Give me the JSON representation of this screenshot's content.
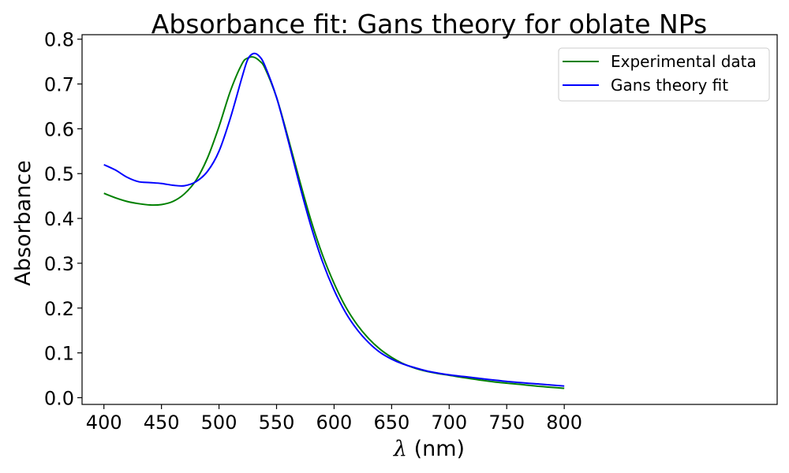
{
  "chart_data": {
    "type": "line",
    "title": "Absorbance fit: Gans theory for oblate NPs",
    "xlabel_symbol": "λ",
    "xlabel_rest": " (nm)",
    "ylabel": "Absorbance",
    "xlim": [
      381,
      985
    ],
    "ylim": [
      -0.015,
      0.81
    ],
    "xticks": [
      400,
      450,
      500,
      550,
      600,
      650,
      700,
      750,
      800
    ],
    "yticks": [
      0.0,
      0.1,
      0.2,
      0.3,
      0.4,
      0.5,
      0.6,
      0.7,
      0.8
    ],
    "ytick_labels": [
      "0.0",
      "0.1",
      "0.2",
      "0.3",
      "0.4",
      "0.5",
      "0.6",
      "0.7",
      "0.8"
    ],
    "grid": false,
    "legend_position": "top-right",
    "series": [
      {
        "name": "Experimental data",
        "color": "#008000",
        "x": [
          400,
          410,
          420,
          430,
          440,
          450,
          460,
          470,
          480,
          490,
          500,
          510,
          520,
          525,
          530,
          535,
          540,
          550,
          560,
          570,
          580,
          590,
          600,
          610,
          620,
          630,
          640,
          650,
          660,
          670,
          680,
          690,
          700,
          720,
          740,
          760,
          780,
          800
        ],
        "y": [
          0.456,
          0.446,
          0.438,
          0.433,
          0.43,
          0.431,
          0.438,
          0.455,
          0.485,
          0.535,
          0.605,
          0.685,
          0.745,
          0.758,
          0.76,
          0.752,
          0.735,
          0.67,
          0.58,
          0.485,
          0.395,
          0.318,
          0.255,
          0.203,
          0.163,
          0.132,
          0.108,
          0.09,
          0.076,
          0.066,
          0.059,
          0.054,
          0.05,
          0.042,
          0.035,
          0.03,
          0.025,
          0.021
        ]
      },
      {
        "name": "Gans theory fit",
        "color": "#0000ff",
        "x": [
          400,
          410,
          420,
          430,
          440,
          450,
          460,
          470,
          480,
          490,
          500,
          510,
          520,
          525,
          530,
          535,
          540,
          550,
          560,
          570,
          580,
          590,
          600,
          610,
          620,
          630,
          640,
          650,
          660,
          670,
          680,
          690,
          700,
          720,
          740,
          760,
          780,
          800
        ],
        "y": [
          0.52,
          0.508,
          0.492,
          0.482,
          0.48,
          0.478,
          0.474,
          0.473,
          0.482,
          0.505,
          0.55,
          0.625,
          0.715,
          0.755,
          0.768,
          0.762,
          0.74,
          0.67,
          0.575,
          0.475,
          0.382,
          0.303,
          0.24,
          0.19,
          0.152,
          0.123,
          0.101,
          0.086,
          0.075,
          0.067,
          0.06,
          0.055,
          0.051,
          0.045,
          0.039,
          0.034,
          0.03,
          0.026
        ]
      }
    ]
  }
}
